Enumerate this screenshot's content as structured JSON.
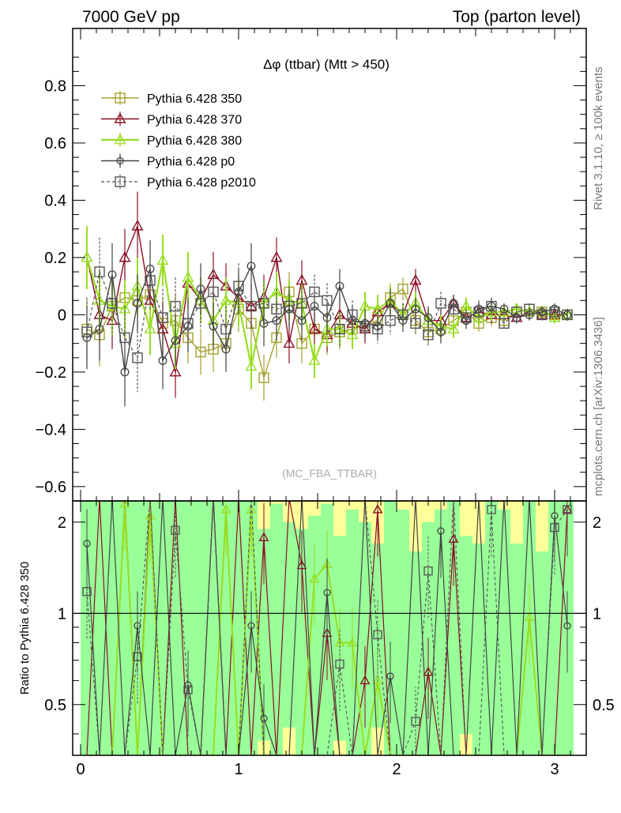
{
  "header": {
    "left": "7000 GeV pp",
    "right": "Top (parton level)"
  },
  "side": {
    "rivet": "Rivet 3.1.10, ≥ 100k events",
    "mcplots": "mcplots.cern.ch [arXiv:1306.3436]"
  },
  "chart_data": [
    {
      "type": "line",
      "panel": "main",
      "title": "Δφ (ttbar) (Mtt > 450)",
      "watermark": "(MC_FBA_TTBAR)",
      "xlim": [
        -0.05,
        3.2
      ],
      "ylim": [
        -0.65,
        1.0
      ],
      "xticks": [
        "0",
        "1",
        "2",
        "3"
      ],
      "yticks": [
        "−0.6",
        "−0.4",
        "−0.2",
        "0",
        "0.2",
        "0.4",
        "0.6",
        "0.8"
      ],
      "legend_position": "top-left",
      "x": [
        0.04,
        0.12,
        0.2,
        0.28,
        0.36,
        0.44,
        0.52,
        0.6,
        0.68,
        0.76,
        0.84,
        0.92,
        1.0,
        1.08,
        1.16,
        1.24,
        1.32,
        1.4,
        1.48,
        1.56,
        1.64,
        1.72,
        1.8,
        1.88,
        1.96,
        2.04,
        2.12,
        2.2,
        2.28,
        2.36,
        2.44,
        2.52,
        2.6,
        2.68,
        2.76,
        2.84,
        2.92,
        3.0,
        3.08
      ],
      "series": [
        {
          "name": "Pythia 6.428 350",
          "color": "#a4a12e",
          "marker": "square-open",
          "dash": false,
          "width": 1.4,
          "values": [
            -0.05,
            -0.07,
            0.03,
            0.06,
            0.05,
            0.07,
            -0.03,
            -0.02,
            -0.08,
            -0.13,
            -0.12,
            -0.1,
            0.02,
            -0.03,
            -0.22,
            -0.08,
            0.08,
            -0.1,
            -0.05,
            -0.08,
            -0.06,
            -0.05,
            -0.04,
            -0.02,
            0.06,
            0.09,
            -0.02,
            -0.06,
            -0.05,
            -0.02,
            0.01,
            -0.03,
            -0.01,
            -0.02,
            0.01,
            0.02,
            0.01,
            0.0,
            0.0
          ],
          "errors": [
            0.1,
            0.11,
            0.1,
            0.1,
            0.1,
            0.09,
            0.09,
            0.09,
            0.09,
            0.08,
            0.08,
            0.08,
            0.08,
            0.08,
            0.08,
            0.07,
            0.07,
            0.07,
            0.06,
            0.06,
            0.06,
            0.05,
            0.05,
            0.05,
            0.05,
            0.04,
            0.04,
            0.04,
            0.04,
            0.03,
            0.03,
            0.03,
            0.03,
            0.02,
            0.02,
            0.02,
            0.02,
            0.02,
            0.02
          ]
        },
        {
          "name": "Pythia 6.428 370",
          "color": "#8b0f24",
          "marker": "triangle-open",
          "dash": false,
          "width": 1.4,
          "values": [
            0.2,
            0.0,
            -0.02,
            0.2,
            0.31,
            0.05,
            -0.05,
            -0.2,
            0.11,
            0.05,
            0.14,
            0.1,
            0.06,
            0.03,
            0.06,
            0.2,
            -0.1,
            0.12,
            -0.05,
            -0.07,
            0.0,
            -0.03,
            -0.05,
            0.01,
            0.04,
            0.0,
            0.12,
            -0.02,
            -0.02,
            0.04,
            -0.01,
            0.01,
            0.0,
            0.0,
            -0.01,
            0.01,
            0.0,
            0.0,
            0.0
          ],
          "errors": [
            0.1,
            0.1,
            0.1,
            0.1,
            0.12,
            0.09,
            0.09,
            0.09,
            0.09,
            0.08,
            0.08,
            0.08,
            0.08,
            0.08,
            0.08,
            0.07,
            0.07,
            0.07,
            0.06,
            0.06,
            0.06,
            0.05,
            0.05,
            0.05,
            0.05,
            0.04,
            0.04,
            0.04,
            0.04,
            0.03,
            0.03,
            0.03,
            0.03,
            0.02,
            0.02,
            0.02,
            0.02,
            0.02,
            0.02
          ]
        },
        {
          "name": "Pythia 6.428 380",
          "color": "#99dd22",
          "marker": "triangle-open",
          "dash": false,
          "width": 2.2,
          "values": [
            0.2,
            0.05,
            0.03,
            0.02,
            0.1,
            -0.05,
            0.19,
            -0.1,
            0.13,
            0.05,
            -0.02,
            0.05,
            0.04,
            -0.18,
            0.04,
            0.08,
            0.05,
            0.04,
            -0.16,
            -0.05,
            -0.05,
            -0.07,
            0.03,
            0.02,
            0.05,
            0.0,
            0.04,
            -0.02,
            -0.04,
            -0.05,
            0.03,
            -0.01,
            0.01,
            0.01,
            0.02,
            0.01,
            0.01,
            -0.01,
            0.0
          ],
          "errors": [
            0.11,
            0.11,
            0.1,
            0.1,
            0.1,
            0.09,
            0.09,
            0.09,
            0.09,
            0.08,
            0.08,
            0.08,
            0.08,
            0.08,
            0.08,
            0.07,
            0.07,
            0.07,
            0.06,
            0.06,
            0.06,
            0.05,
            0.05,
            0.05,
            0.05,
            0.04,
            0.04,
            0.04,
            0.04,
            0.03,
            0.03,
            0.03,
            0.03,
            0.02,
            0.02,
            0.02,
            0.02,
            0.02,
            0.02
          ]
        },
        {
          "name": "Pythia 6.428 p0",
          "color": "#444444",
          "marker": "circle-open",
          "dash": false,
          "width": 1.4,
          "values": [
            -0.08,
            -0.05,
            0.14,
            -0.2,
            0.04,
            0.16,
            -0.16,
            -0.09,
            -0.04,
            0.09,
            -0.04,
            -0.12,
            0.08,
            0.17,
            -0.03,
            -0.02,
            0.02,
            -0.02,
            0.03,
            -0.01,
            0.1,
            -0.02,
            -0.03,
            -0.04,
            0.04,
            -0.02,
            0.02,
            -0.01,
            -0.06,
            0.04,
            -0.02,
            0.02,
            0.03,
            0.02,
            -0.01,
            0.0,
            0.01,
            0.02,
            0.0
          ],
          "errors": [
            0.11,
            0.11,
            0.11,
            0.12,
            0.1,
            0.1,
            0.1,
            0.09,
            0.09,
            0.09,
            0.08,
            0.08,
            0.08,
            0.08,
            0.08,
            0.07,
            0.07,
            0.07,
            0.06,
            0.06,
            0.06,
            0.05,
            0.05,
            0.05,
            0.05,
            0.04,
            0.04,
            0.04,
            0.04,
            0.03,
            0.03,
            0.03,
            0.03,
            0.02,
            0.02,
            0.02,
            0.02,
            0.02,
            0.02
          ]
        },
        {
          "name": "Pythia 6.428 p2010",
          "color": "#555555",
          "marker": "square-open",
          "dash": true,
          "width": 1.2,
          "values": [
            -0.06,
            0.15,
            0.04,
            -0.08,
            -0.15,
            0.12,
            -0.01,
            0.03,
            -0.03,
            0.04,
            0.08,
            -0.05,
            0.1,
            0.03,
            0.04,
            0.02,
            0.03,
            0.04,
            0.08,
            0.05,
            -0.05,
            0.0,
            -0.04,
            -0.05,
            -0.02,
            0.0,
            -0.03,
            -0.07,
            0.04,
            0.02,
            -0.01,
            0.01,
            0.03,
            -0.03,
            0.01,
            0.02,
            0.0,
            0.01,
            0.0
          ],
          "errors": [
            0.12,
            0.12,
            0.11,
            0.11,
            0.12,
            0.1,
            0.1,
            0.1,
            0.09,
            0.09,
            0.09,
            0.08,
            0.08,
            0.08,
            0.08,
            0.07,
            0.07,
            0.07,
            0.06,
            0.06,
            0.06,
            0.05,
            0.05,
            0.05,
            0.05,
            0.04,
            0.04,
            0.04,
            0.04,
            0.03,
            0.03,
            0.03,
            0.03,
            0.02,
            0.02,
            0.02,
            0.02,
            0.02,
            0.02
          ]
        }
      ]
    },
    {
      "type": "line",
      "panel": "ratio",
      "ylabel": "Ratio to Pythia 6.428 350",
      "xlim": [
        -0.05,
        3.2
      ],
      "ylim": [
        0.34,
        2.35
      ],
      "xticks": [
        "0",
        "1",
        "2",
        "3"
      ],
      "yticks": [
        "0.5",
        "1",
        "2"
      ],
      "band_colors": {
        "inner": "#99ff99",
        "outer": "#ffff99"
      },
      "band_outer_top": [
        2.35,
        2.35,
        2.35,
        2.35,
        2.35,
        2.35,
        2.35,
        2.35,
        2.35,
        2.35,
        2.35,
        2.35,
        2.35,
        2.35,
        2.35,
        2.35,
        2.35,
        2.35,
        2.35,
        2.35,
        2.35,
        2.35,
        2.35,
        2.35,
        2.35,
        2.35,
        2.35,
        2.35,
        2.35,
        2.35,
        2.35,
        2.35,
        2.35,
        2.35,
        2.35,
        2.35,
        2.35,
        2.35,
        2.35
      ],
      "band_inner_top": [
        2.35,
        2.35,
        2.35,
        2.35,
        2.35,
        2.35,
        2.35,
        2.35,
        2.35,
        2.35,
        2.35,
        2.35,
        2.35,
        2.35,
        1.9,
        2.3,
        2.0,
        1.9,
        2.1,
        2.3,
        1.8,
        2.2,
        2.0,
        1.7,
        2.35,
        2.2,
        1.6,
        2.0,
        2.2,
        2.35,
        1.8,
        1.7,
        2.35,
        2.2,
        1.7,
        2.35,
        1.6,
        2.35,
        2.35
      ],
      "band_inner_bottom": [
        0.34,
        0.34,
        0.34,
        0.34,
        0.34,
        0.34,
        0.34,
        0.34,
        0.34,
        0.34,
        0.34,
        0.34,
        0.34,
        0.34,
        0.38,
        0.34,
        0.42,
        0.34,
        0.34,
        0.34,
        0.38,
        0.34,
        0.34,
        0.42,
        0.34,
        0.34,
        0.34,
        0.34,
        0.34,
        0.34,
        0.4,
        0.34,
        0.34,
        0.34,
        0.34,
        0.34,
        0.34,
        0.34,
        0.34
      ],
      "x": [
        0.04,
        0.12,
        0.2,
        0.28,
        0.36,
        0.44,
        0.52,
        0.6,
        0.68,
        0.76,
        0.84,
        0.92,
        1.0,
        1.08,
        1.16,
        1.24,
        1.32,
        1.4,
        1.48,
        1.56,
        1.64,
        1.72,
        1.8,
        1.88,
        1.96,
        2.04,
        2.12,
        2.2,
        2.28,
        2.36,
        2.44,
        2.52,
        2.6,
        2.68,
        2.76,
        2.84,
        2.92,
        3.0,
        3.08
      ],
      "series": [
        {
          "name": "Pythia 6.428 370",
          "color": "#8b0f24",
          "marker": "triangle-open",
          "dash": false,
          "width": 1.2,
          "values": [
            0.34,
            2.4,
            0.34,
            2.4,
            0.34,
            2.4,
            0.34,
            2.4,
            0.34,
            0.34,
            2.4,
            0.34,
            2.4,
            0.34,
            1.78,
            0.34,
            2.4,
            1.44,
            0.34,
            0.86,
            0.34,
            0.34,
            0.6,
            2.2,
            0.34,
            0.34,
            0.34,
            0.64,
            0.34,
            1.76,
            0.34,
            0.34,
            0.34,
            0.34,
            0.34,
            0.34,
            0.34,
            0.34,
            2.2
          ]
        },
        {
          "name": "Pythia 6.428 380",
          "color": "#99dd22",
          "marker": "triangle-open",
          "dash": false,
          "width": 2.0,
          "values": [
            0.34,
            0.34,
            0.34,
            2.3,
            0.34,
            2.1,
            0.34,
            0.34,
            0.34,
            0.34,
            0.34,
            2.2,
            0.34,
            2.2,
            0.34,
            0.34,
            0.34,
            0.34,
            1.3,
            1.45,
            0.8,
            0.8,
            0.34,
            0.6,
            0.34,
            0.34,
            0.34,
            0.34,
            0.34,
            0.34,
            0.34,
            0.34,
            0.34,
            0.34,
            0.34,
            0.97,
            0.34,
            0.34,
            0.34
          ]
        },
        {
          "name": "Pythia 6.428 p0",
          "color": "#444444",
          "marker": "circle-open",
          "dash": false,
          "width": 1.2,
          "values": [
            1.7,
            0.34,
            2.4,
            0.34,
            0.91,
            0.34,
            2.4,
            0.34,
            0.58,
            0.34,
            2.4,
            0.34,
            0.34,
            0.91,
            0.45,
            0.34,
            0.34,
            2.4,
            0.34,
            1.17,
            0.34,
            0.34,
            2.4,
            0.34,
            0.62,
            0.34,
            2.4,
            0.34,
            1.87,
            0.34,
            0.34,
            2.4,
            0.34,
            2.4,
            0.34,
            2.4,
            0.34,
            2.1,
            0.91
          ]
        },
        {
          "name": "Pythia 6.428 p2010",
          "color": "#555555",
          "marker": "square-open",
          "dash": true,
          "width": 1.1,
          "values": [
            1.18,
            0.34,
            2.4,
            0.34,
            0.72,
            2.4,
            0.34,
            1.88,
            0.56,
            0.34,
            2.4,
            0.34,
            0.34,
            2.4,
            0.34,
            0.34,
            0.34,
            0.34,
            0.34,
            0.34,
            0.68,
            0.34,
            2.4,
            0.85,
            0.34,
            0.34,
            0.44,
            1.38,
            0.34,
            2.4,
            0.34,
            0.34,
            2.2,
            0.34,
            0.34,
            0.34,
            0.34,
            1.92,
            2.2
          ]
        }
      ]
    }
  ]
}
